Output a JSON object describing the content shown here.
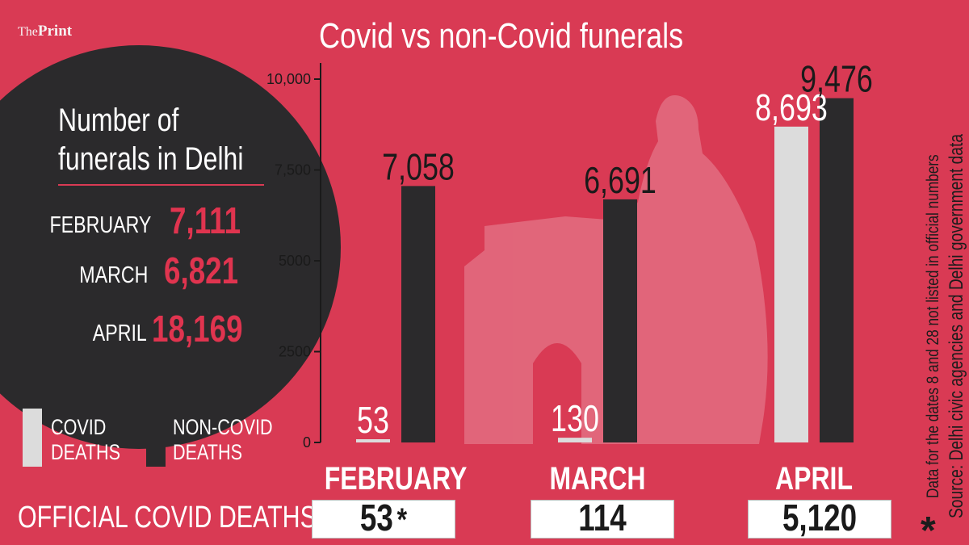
{
  "brand": {
    "the": "The",
    "print": "Print"
  },
  "title": "Covid vs non-Covid funerals",
  "panel": {
    "title_line1": "Number of",
    "title_line2": "funerals in Delhi",
    "rows": [
      {
        "label": "FEBRUARY",
        "value": "7,111"
      },
      {
        "label": "MARCH",
        "value": "6,821"
      },
      {
        "label": "APRIL",
        "value": "18,169"
      }
    ]
  },
  "legend": {
    "covid_line1": "COVID",
    "covid_line2": "DEATHS",
    "noncovid_line1": "NON-COVID",
    "noncovid_line2": "DEATHS"
  },
  "official": {
    "label": "OFFICIAL COVID DEATHS",
    "values": [
      "53",
      "114",
      "5,120"
    ],
    "asterisk": "*"
  },
  "notes": {
    "asterisk": "*",
    "footnote": "Data for the dates 8 and 28 not listed in official numbers",
    "source": "Source: Delhi civic agencies and Delhi government data"
  },
  "colors": {
    "background": "#d93a54",
    "covid": "#dcdcdc",
    "noncovid": "#2b2a2c",
    "accent": "#e0344f"
  },
  "chart_data": {
    "type": "bar",
    "title": "Covid vs non-Covid funerals",
    "categories": [
      "FEBRUARY",
      "MARCH",
      "APRIL"
    ],
    "series": [
      {
        "name": "COVID DEATHS",
        "values": [
          53,
          130,
          8693
        ],
        "labels": [
          "53",
          "130",
          "8,693"
        ],
        "color": "#dcdcdc"
      },
      {
        "name": "NON-COVID DEATHS",
        "values": [
          7058,
          6691,
          9476
        ],
        "labels": [
          "7,058",
          "6,691",
          "9,476"
        ],
        "color": "#2b2a2c"
      }
    ],
    "yticks": [
      0,
      2500,
      5000,
      7500,
      10000
    ],
    "ytick_labels": [
      "0",
      "2500",
      "5000",
      "7,500",
      "10,000"
    ],
    "ylim": [
      0,
      10000
    ],
    "xlabel": "",
    "ylabel": "",
    "grid": false,
    "legend": "bottom-left"
  }
}
